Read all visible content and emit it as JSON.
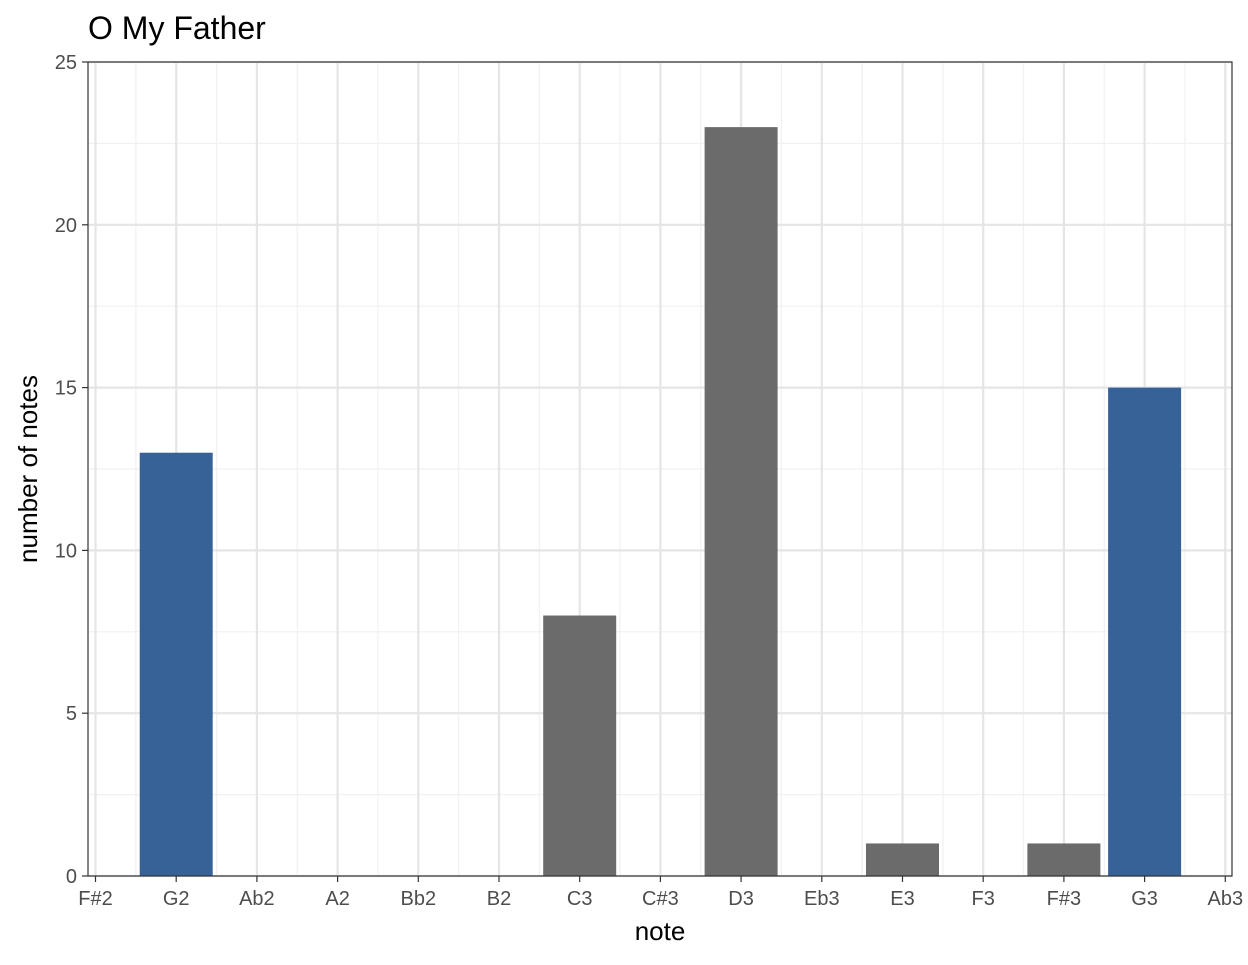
{
  "chart_data": {
    "type": "bar",
    "title": "O My Father",
    "xlabel": "note",
    "ylabel": "number of notes",
    "categories": [
      "F#2",
      "G2",
      "Ab2",
      "A2",
      "Bb2",
      "B2",
      "C3",
      "C#3",
      "D3",
      "Eb3",
      "E3",
      "F3",
      "F#3",
      "G3",
      "Ab3"
    ],
    "values": [
      0,
      13,
      0,
      0,
      0,
      0,
      8,
      0,
      23,
      0,
      1,
      0,
      1,
      15,
      0
    ],
    "highlighted": [
      "G2",
      "G3"
    ],
    "ylim": [
      0,
      25
    ],
    "yticks": [
      0,
      5,
      10,
      15,
      20,
      25
    ],
    "grid": true,
    "legend": "none",
    "colors": {
      "bar": "#6b6b6b",
      "highlight": "#376298",
      "grid_major": "#e5e5e5",
      "grid_minor": "#f1f1f1",
      "axis": "#333333",
      "tick_text": "#4d4d4d"
    }
  }
}
